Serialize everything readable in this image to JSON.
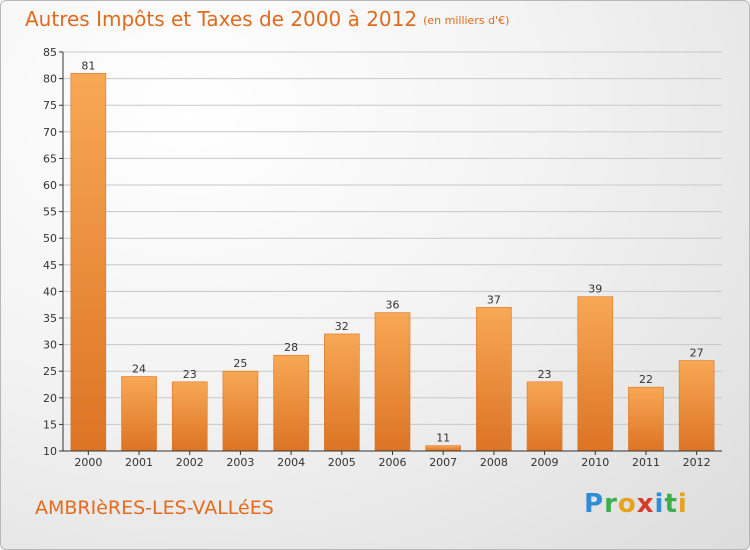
{
  "title": "Autres Impôts et Taxes de 2000 à 2012",
  "title_unit": "(en milliers d'€)",
  "commune": "AMBRIèRES-LES-VALLéES",
  "logo": {
    "letters": [
      "P",
      "r",
      "o",
      "x",
      "i",
      "t",
      "i"
    ],
    "colors": [
      "#2e8fd6",
      "#3cae4a",
      "#e8a21c",
      "#d63a2a",
      "#2e8fd6",
      "#3cae4a",
      "#e8a21c"
    ]
  },
  "colors": {
    "bar_light": "#f8a854",
    "bar_dark": "#dc7424",
    "title": "#e06a1e",
    "axis": "#333333",
    "grid": "#c8c8c8"
  },
  "chart_data": {
    "type": "bar",
    "categories": [
      "2000",
      "2001",
      "2002",
      "2003",
      "2004",
      "2005",
      "2006",
      "2007",
      "2008",
      "2009",
      "2010",
      "2011",
      "2012"
    ],
    "values": [
      81,
      24,
      23,
      25,
      28,
      32,
      36,
      11,
      37,
      23,
      39,
      22,
      27
    ],
    "ylim": [
      10,
      85
    ],
    "yticks": [
      10,
      15,
      20,
      25,
      30,
      35,
      40,
      45,
      50,
      55,
      60,
      65,
      70,
      75,
      80,
      85
    ],
    "grid": true
  }
}
